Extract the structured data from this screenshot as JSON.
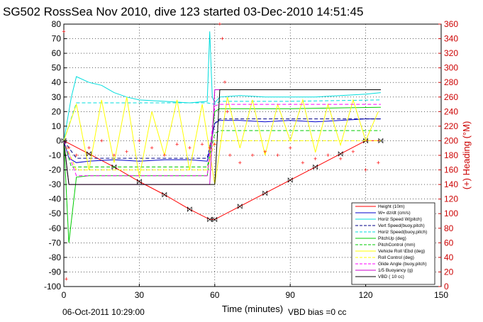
{
  "chart_data": {
    "type": "line",
    "title": "SG502 RossSea Nov 2010, dive 123 started 03-Dec-2010 14:51:45",
    "xlabel": "Time (minutes)",
    "ylabel_right": "(+) Heading (°M)",
    "xlim": [
      0,
      150
    ],
    "ylim_left": [
      -100,
      80
    ],
    "ylim_right": [
      0,
      360
    ],
    "x_ticks": [
      "0",
      "30",
      "60",
      "90",
      "120",
      "150"
    ],
    "y_ticks_left": [
      "80",
      "70",
      "60",
      "50",
      "40",
      "30",
      "20",
      "10",
      "0",
      "-10",
      "-20",
      "-30",
      "-40",
      "-50",
      "-60",
      "-70",
      "-80",
      "-90",
      "-100"
    ],
    "y_ticks_right": [
      "360",
      "340",
      "320",
      "300",
      "280",
      "260",
      "240",
      "220",
      "200",
      "180",
      "160",
      "140",
      "120",
      "100",
      "80",
      "60",
      "40",
      "20",
      "0"
    ],
    "grid": true,
    "legend_position": "bottom-right",
    "footer_date": "06-Oct-2011 10:29:00",
    "footer_vbd": "VBD bias =0 cc",
    "series": [
      {
        "name": "Height (10m)",
        "color": "#ff0000",
        "style": "solid-marker",
        "x": [
          0,
          10,
          20,
          30,
          40,
          50,
          58,
          60,
          70,
          80,
          90,
          100,
          110,
          120,
          126
        ],
        "y": [
          0,
          -9,
          -18,
          -28,
          -37,
          -47,
          -54,
          -54,
          -45,
          -36,
          -27,
          -18,
          -9,
          0,
          0
        ]
      },
      {
        "name": "W= dz/dt (cm/s)",
        "color": "#0000cc",
        "style": "solid",
        "x": [
          0,
          2,
          5,
          10,
          20,
          30,
          40,
          50,
          57,
          60,
          62,
          70,
          80,
          90,
          100,
          110,
          120,
          126
        ],
        "y": [
          0,
          -12,
          -15,
          -14,
          -13,
          -14,
          -13,
          -13,
          -14,
          12,
          14,
          14,
          13,
          14,
          13,
          14,
          15,
          15
        ]
      },
      {
        "name": "Horiz Speed W(pitch)",
        "color": "#00dddd",
        "style": "solid",
        "x": [
          0,
          3,
          5,
          10,
          15,
          20,
          25,
          30,
          40,
          50,
          57,
          58,
          59,
          60,
          62,
          70,
          80,
          90,
          100,
          110,
          120,
          126
        ],
        "y": [
          0,
          30,
          44,
          40,
          38,
          33,
          30,
          28,
          27,
          26,
          27,
          75,
          30,
          26,
          30,
          31,
          30,
          30,
          30,
          31,
          32,
          33
        ]
      },
      {
        "name": "Vert Speed(buoy,pitch)",
        "color": "#000088",
        "style": "dashed",
        "x": [
          0,
          5,
          30,
          57,
          60,
          62,
          90,
          126
        ],
        "y": [
          0,
          -12,
          -12,
          -12,
          12,
          15,
          15,
          15
        ]
      },
      {
        "name": "Horiz Speed(buoy,pitch)",
        "color": "#00dddd",
        "style": "dashed",
        "x": [
          0,
          5,
          30,
          57,
          60,
          62,
          90,
          126
        ],
        "y": [
          0,
          26,
          26,
          26,
          25,
          27,
          27,
          28
        ]
      },
      {
        "name": "PitchUp (deg)",
        "color": "#00cc00",
        "style": "solid",
        "x": [
          0,
          2,
          5,
          10,
          30,
          57,
          60,
          62,
          90,
          126
        ],
        "y": [
          0,
          -70,
          -25,
          -24,
          -24,
          -24,
          20,
          22,
          22,
          23
        ]
      },
      {
        "name": "PitchControl (mm)",
        "color": "#00cc00",
        "style": "dashed",
        "x": [
          0,
          3,
          30,
          57,
          60,
          62,
          90,
          126
        ],
        "y": [
          0,
          -18,
          -18,
          -18,
          5,
          7,
          7,
          7
        ]
      },
      {
        "name": "Vehicle Roll \\Ebd (deg)",
        "color": "#ffff00",
        "style": "solid",
        "x": [
          0,
          5,
          10,
          15,
          20,
          25,
          30,
          35,
          40,
          45,
          50,
          55,
          60,
          65,
          70,
          75,
          80,
          85,
          90,
          95,
          100,
          105,
          110,
          115,
          120,
          125
        ],
        "y": [
          0,
          25,
          -20,
          28,
          -15,
          30,
          -25,
          20,
          -10,
          28,
          -20,
          25,
          -30,
          30,
          -5,
          28,
          -10,
          25,
          0,
          28,
          -8,
          25,
          -3,
          28,
          0,
          20
        ]
      },
      {
        "name": "Roll Control (deg)",
        "color": "#ffff00",
        "style": "dashed",
        "x": [
          0,
          5,
          30,
          57,
          60,
          62,
          90,
          126
        ],
        "y": [
          0,
          -20,
          -20,
          -20,
          0,
          0,
          0,
          0
        ]
      },
      {
        "name": "Glide Angle (buoy,pitch)",
        "color": "#ff00ff",
        "style": "dashed",
        "x": [
          0,
          5,
          30,
          57,
          60,
          62,
          90,
          126
        ],
        "y": [
          0,
          -24,
          -24,
          -24,
          24,
          25,
          25,
          25
        ]
      },
      {
        "name": "1/5 Buoyancy (g)",
        "color": "#cc00cc",
        "style": "solid",
        "x": [
          0,
          2,
          5,
          57,
          58,
          60,
          62,
          90,
          126
        ],
        "y": [
          0,
          -30,
          -30,
          -30,
          -30,
          35,
          35,
          35,
          35
        ]
      },
      {
        "name": "VBD ( 10 cc)",
        "color": "#000000",
        "style": "solid",
        "x": [
          0,
          2,
          5,
          57,
          60,
          62,
          90,
          126
        ],
        "y": [
          0,
          -30,
          -30,
          -30,
          -30,
          35,
          35,
          35
        ]
      },
      {
        "name": "Heading",
        "color": "#ff0000",
        "style": "markers",
        "axis": "right",
        "x": [
          0,
          1,
          2,
          5,
          10,
          15,
          20,
          25,
          30,
          35,
          40,
          45,
          50,
          55,
          58,
          60,
          62,
          63,
          64,
          65,
          66,
          70,
          75,
          80,
          85,
          90,
          95,
          100,
          105,
          110,
          115,
          120,
          125
        ],
        "y": [
          350,
          10,
          190,
          180,
          190,
          200,
          180,
          185,
          200,
          190,
          180,
          195,
          190,
          195,
          190,
          195,
          360,
          340,
          280,
          240,
          180,
          170,
          180,
          185,
          180,
          190,
          170,
          175,
          180,
          175,
          185,
          160,
          170
        ]
      }
    ]
  }
}
